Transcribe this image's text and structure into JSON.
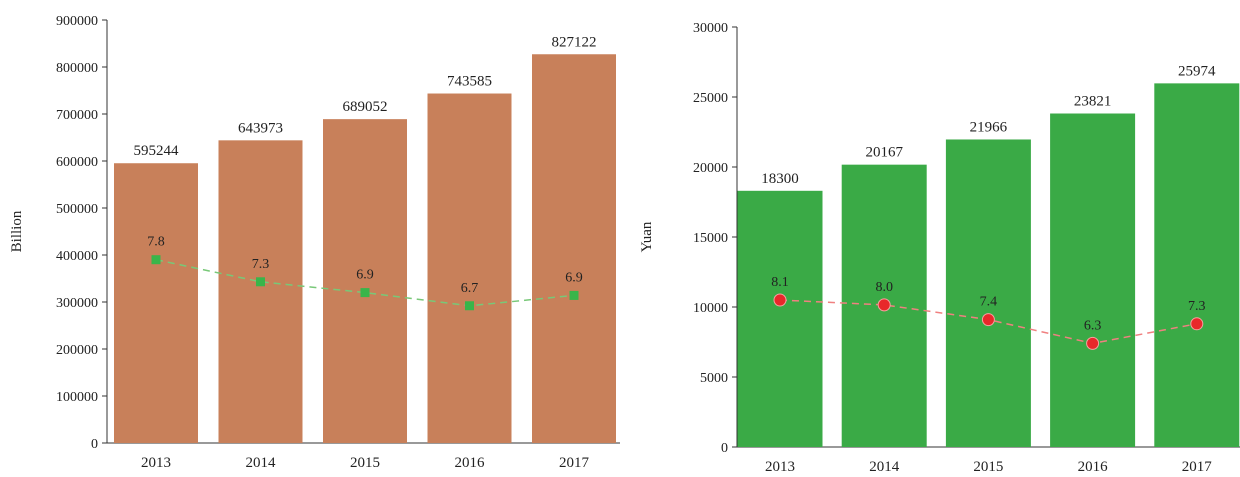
{
  "chart_data": [
    {
      "type": "bar",
      "categories": [
        "2013",
        "2014",
        "2015",
        "2016",
        "2017"
      ],
      "values": [
        595244,
        643973,
        689052,
        743585,
        827122
      ],
      "ylabel": "Billion",
      "ylim": [
        0,
        900000
      ],
      "yticks": [
        "0",
        "100000",
        "200000",
        "300000",
        "400000",
        "500000",
        "600000",
        "700000",
        "800000",
        "900000"
      ],
      "bar_color": "#c8805a",
      "overlay": {
        "type": "line",
        "style": "dashed",
        "values": [
          7.8,
          7.3,
          6.9,
          6.7,
          6.9
        ],
        "labels": [
          "7.8",
          "7.3",
          "6.9",
          "6.7",
          "6.9"
        ],
        "marker_color": "#39b54a",
        "line_color": "#78c878",
        "plotted_on_primary_axis": [
          390000,
          343000,
          320000,
          292000,
          314000
        ]
      }
    },
    {
      "type": "bar",
      "categories": [
        "2013",
        "2014",
        "2015",
        "2016",
        "2017"
      ],
      "values": [
        18300,
        20167,
        21966,
        23821,
        25974
      ],
      "ylabel": "Yuan",
      "ylim": [
        0,
        30000
      ],
      "yticks": [
        "0",
        "5000",
        "10000",
        "15000",
        "20000",
        "25000",
        "30000"
      ],
      "bar_color": "#3aaa46",
      "overlay": {
        "type": "line",
        "style": "dashed",
        "values": [
          8.1,
          8.0,
          7.4,
          6.3,
          7.3
        ],
        "labels": [
          "8.1",
          "8.0",
          "7.4",
          "6.3",
          "7.3"
        ],
        "marker_color": "#e8282a",
        "line_color": "#f08080",
        "plotted_on_primary_axis": [
          10500,
          10150,
          9100,
          7400,
          8800
        ]
      }
    }
  ]
}
